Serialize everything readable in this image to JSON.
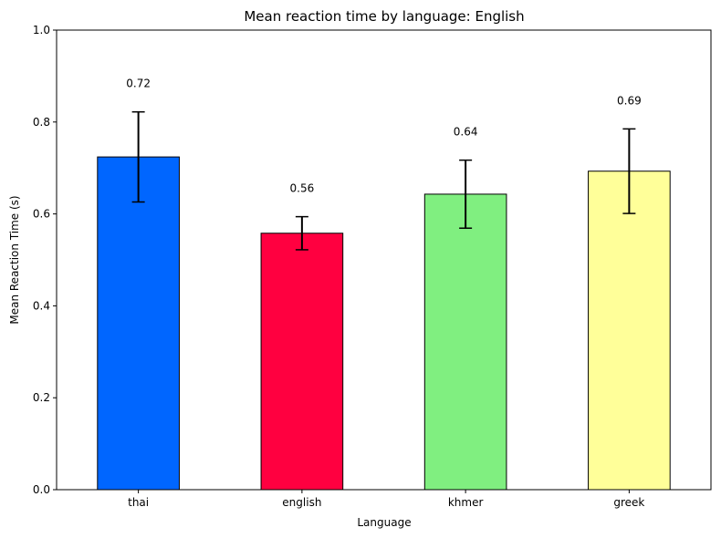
{
  "chart_data": {
    "type": "bar",
    "title": "Mean reaction time by language: English",
    "xlabel": "Language",
    "ylabel": "Mean Reaction Time (s)",
    "categories": [
      "thai",
      "english",
      "khmer",
      "greek"
    ],
    "values": [
      0.724,
      0.558,
      0.643,
      0.693
    ],
    "errors": [
      0.098,
      0.036,
      0.074,
      0.092
    ],
    "data_labels": [
      "0.72",
      "0.56",
      "0.64",
      "0.69"
    ],
    "bar_colors": [
      "#0066ff",
      "#ff0040",
      "#80ef80",
      "#ffff99"
    ],
    "ylim": [
      0,
      1.0
    ],
    "yticks": [
      0.0,
      0.2,
      0.4,
      0.6,
      0.8,
      1.0
    ],
    "ytick_labels": [
      "0.0",
      "0.2",
      "0.4",
      "0.6",
      "0.8",
      "1.0"
    ],
    "grid": false,
    "legend": "none"
  }
}
